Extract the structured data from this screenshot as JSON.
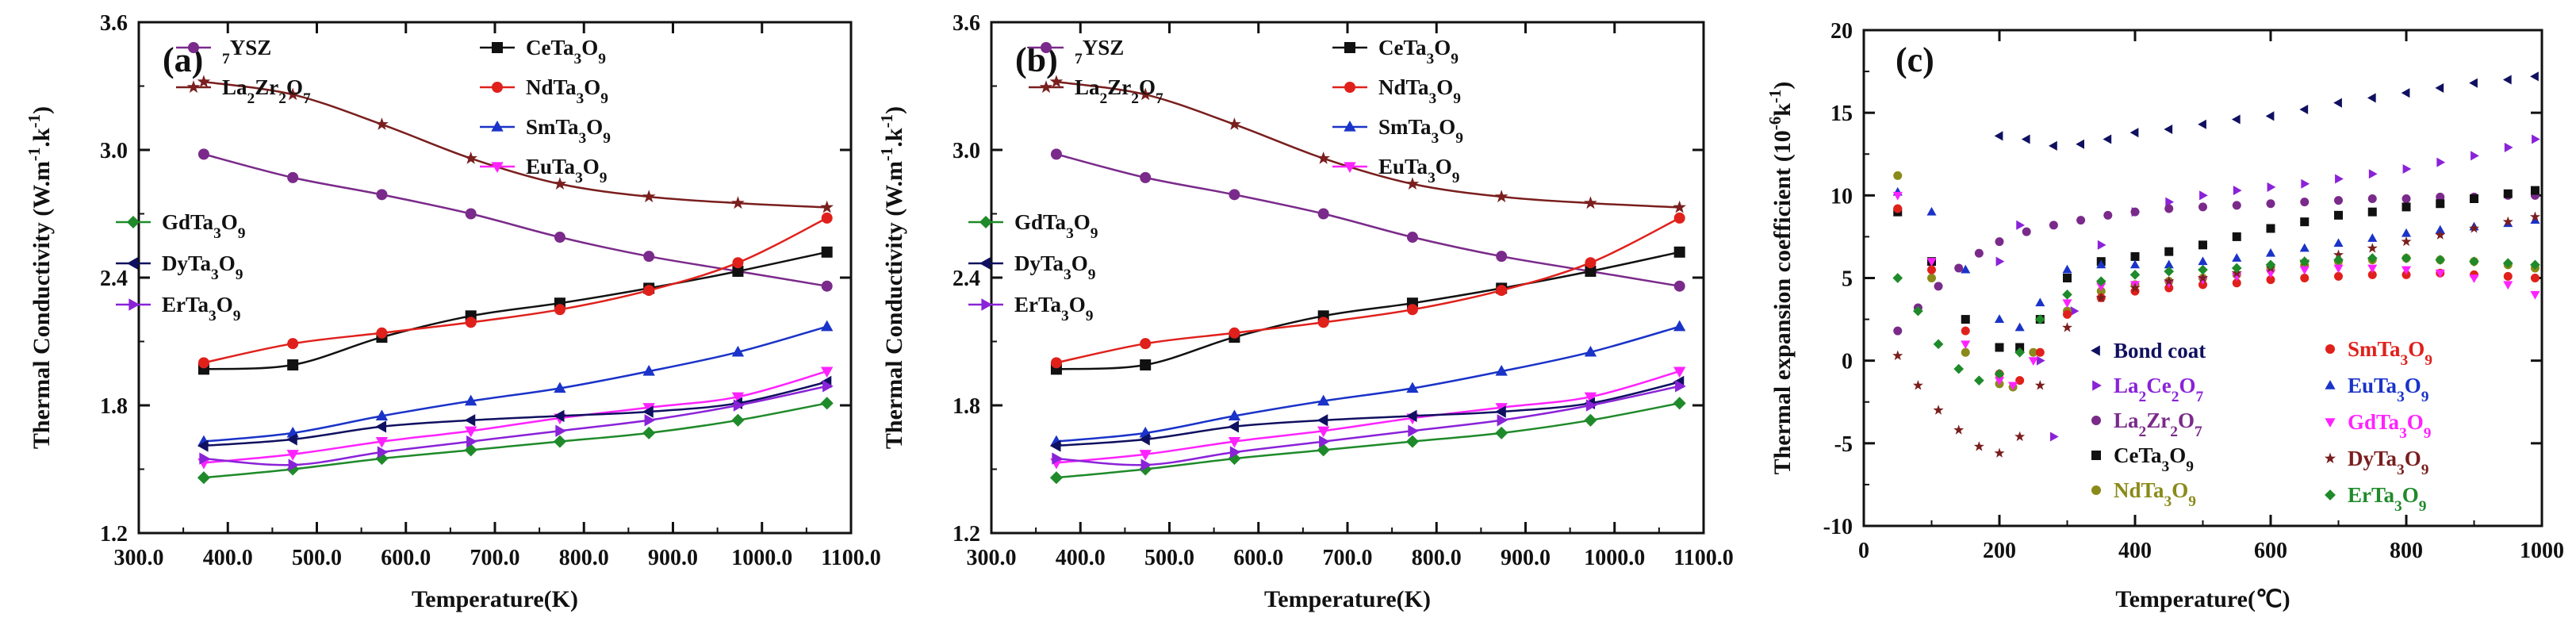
{
  "chart_data": [
    {
      "type": "line",
      "panel_label": "(a)",
      "xlabel": "Temperature(K)",
      "ylabel": "Thermal Conductivity (W.m-1.k-1)",
      "xlim": [
        300,
        1100
      ],
      "ylim": [
        1.2,
        3.6
      ],
      "xticks": [
        300,
        400,
        500,
        600,
        700,
        800,
        900,
        1000,
        1100
      ],
      "yticks": [
        1.2,
        1.8,
        2.4,
        3.0,
        3.6
      ],
      "grid": false,
      "x": [
        373,
        473,
        573,
        673,
        773,
        873,
        973,
        1073
      ],
      "series": [
        {
          "name": "7YSZ",
          "marker": "circle",
          "color": "#7a2a8a",
          "values": [
            2.98,
            2.87,
            2.79,
            2.7,
            2.59,
            2.5,
            2.43,
            2.36
          ]
        },
        {
          "name": "La2Zr2O7",
          "marker": "star",
          "color": "#7a1e1e",
          "values": [
            3.32,
            3.26,
            3.12,
            2.96,
            2.84,
            2.78,
            2.75,
            2.73
          ]
        },
        {
          "name": "CeTa3O9",
          "marker": "square",
          "color": "#111111",
          "values": [
            1.97,
            1.99,
            2.12,
            2.22,
            2.28,
            2.35,
            2.43,
            2.52
          ]
        },
        {
          "name": "NdTa3O9",
          "marker": "circle",
          "color": "#e0201b",
          "values": [
            2.0,
            2.09,
            2.14,
            2.19,
            2.25,
            2.34,
            2.47,
            2.68
          ]
        },
        {
          "name": "SmTa3O9",
          "marker": "triangle-up",
          "color": "#1a33c8",
          "values": [
            1.63,
            1.67,
            1.75,
            1.82,
            1.88,
            1.96,
            2.05,
            2.17
          ]
        },
        {
          "name": "EuTa3O9",
          "marker": "triangle-down",
          "color": "#ff22ff",
          "values": [
            1.53,
            1.57,
            1.63,
            1.68,
            1.74,
            1.79,
            1.84,
            1.96
          ]
        },
        {
          "name": "GdTa3O9",
          "marker": "diamond",
          "color": "#1f8a2a",
          "values": [
            1.46,
            1.5,
            1.55,
            1.59,
            1.63,
            1.67,
            1.73,
            1.81
          ]
        },
        {
          "name": "DyTa3O9",
          "marker": "triangle-left",
          "color": "#101060",
          "values": [
            1.61,
            1.64,
            1.7,
            1.73,
            1.75,
            1.77,
            1.81,
            1.91
          ]
        },
        {
          "name": "ErTa3O9",
          "marker": "triangle-right",
          "color": "#8a22d8",
          "values": [
            1.55,
            1.52,
            1.58,
            1.63,
            1.68,
            1.73,
            1.8,
            1.89
          ]
        }
      ]
    },
    {
      "type": "line",
      "panel_label": "(b)",
      "xlabel": "Temperature(K)",
      "ylabel": "Thermal Conductivity (W.m-1.k-1)",
      "xlim": [
        300,
        1100
      ],
      "ylim": [
        1.2,
        3.6
      ],
      "xticks": [
        300,
        400,
        500,
        600,
        700,
        800,
        900,
        1000,
        1100
      ],
      "yticks": [
        1.2,
        1.8,
        2.4,
        3.0,
        3.6
      ],
      "grid": false,
      "x": [
        373,
        473,
        573,
        673,
        773,
        873,
        973,
        1073
      ],
      "series": [
        {
          "name": "7YSZ",
          "marker": "circle",
          "color": "#7a2a8a",
          "values": [
            2.98,
            2.87,
            2.79,
            2.7,
            2.59,
            2.5,
            2.43,
            2.36
          ]
        },
        {
          "name": "La2Zr2O7",
          "marker": "star",
          "color": "#7a1e1e",
          "values": [
            3.32,
            3.26,
            3.12,
            2.96,
            2.84,
            2.78,
            2.75,
            2.73
          ]
        },
        {
          "name": "CeTa3O9",
          "marker": "square",
          "color": "#111111",
          "values": [
            1.97,
            1.99,
            2.12,
            2.22,
            2.28,
            2.35,
            2.43,
            2.52
          ]
        },
        {
          "name": "NdTa3O9",
          "marker": "circle",
          "color": "#e0201b",
          "values": [
            2.0,
            2.09,
            2.14,
            2.19,
            2.25,
            2.34,
            2.47,
            2.68
          ]
        },
        {
          "name": "SmTa3O9",
          "marker": "triangle-up",
          "color": "#1a33c8",
          "values": [
            1.63,
            1.67,
            1.75,
            1.82,
            1.88,
            1.96,
            2.05,
            2.17
          ]
        },
        {
          "name": "EuTa3O9",
          "marker": "triangle-down",
          "color": "#ff22ff",
          "values": [
            1.53,
            1.57,
            1.63,
            1.68,
            1.74,
            1.79,
            1.84,
            1.96
          ]
        },
        {
          "name": "GdTa3O9",
          "marker": "diamond",
          "color": "#1f8a2a",
          "values": [
            1.46,
            1.5,
            1.55,
            1.59,
            1.63,
            1.67,
            1.73,
            1.81
          ]
        },
        {
          "name": "DyTa3O9",
          "marker": "triangle-left",
          "color": "#101060",
          "values": [
            1.61,
            1.64,
            1.7,
            1.73,
            1.75,
            1.77,
            1.81,
            1.91
          ]
        },
        {
          "name": "ErTa3O9",
          "marker": "triangle-right",
          "color": "#8a22d8",
          "values": [
            1.55,
            1.52,
            1.58,
            1.63,
            1.68,
            1.73,
            1.8,
            1.89
          ]
        }
      ]
    },
    {
      "type": "scatter",
      "panel_label": "(c)",
      "xlabel": "Temperature(℃)",
      "ylabel": "Thermal expansion coefficient (10-6k-1)",
      "xlim": [
        0,
        1000
      ],
      "ylim": [
        -10,
        20
      ],
      "xticks": [
        0,
        200,
        400,
        600,
        800,
        1000
      ],
      "yticks": [
        -10,
        -5,
        0,
        5,
        10,
        15,
        20
      ],
      "grid": false,
      "series": [
        {
          "name": "Bond coat",
          "marker": "triangle-left",
          "color": "#101060",
          "x": [
            200,
            240,
            280,
            320,
            360,
            400,
            450,
            500,
            550,
            600,
            650,
            700,
            750,
            800,
            850,
            900,
            950,
            990
          ],
          "y": [
            13.6,
            13.4,
            13.0,
            13.1,
            13.4,
            13.8,
            14.0,
            14.3,
            14.6,
            14.8,
            15.2,
            15.6,
            15.9,
            16.2,
            16.5,
            16.8,
            17.0,
            17.2
          ]
        },
        {
          "name": "La2Ce2O7",
          "marker": "triangle-right",
          "color": "#8a22d8",
          "x": [
            200,
            230,
            260,
            280,
            310,
            350,
            400,
            450,
            500,
            550,
            600,
            650,
            700,
            750,
            800,
            850,
            900,
            950,
            990
          ],
          "y": [
            6.0,
            8.2,
            0.0,
            -4.6,
            3.0,
            7.0,
            9.0,
            9.6,
            10.0,
            10.3,
            10.5,
            10.7,
            11.0,
            11.3,
            11.6,
            12.0,
            12.4,
            12.9,
            13.4
          ]
        },
        {
          "name": "La2Zr2O7",
          "marker": "circle",
          "color": "#7a2a8a",
          "x": [
            50,
            80,
            110,
            140,
            170,
            200,
            240,
            280,
            320,
            360,
            400,
            450,
            500,
            550,
            600,
            650,
            700,
            750,
            800,
            850,
            900,
            950,
            990
          ],
          "y": [
            1.8,
            3.2,
            4.5,
            5.6,
            6.5,
            7.2,
            7.8,
            8.2,
            8.5,
            8.8,
            9.0,
            9.2,
            9.3,
            9.4,
            9.5,
            9.6,
            9.7,
            9.8,
            9.8,
            9.9,
            9.9,
            10.0,
            10.0
          ]
        },
        {
          "name": "CeTa3O9",
          "marker": "square",
          "color": "#111111",
          "x": [
            50,
            100,
            150,
            200,
            230,
            260,
            300,
            350,
            400,
            450,
            500,
            550,
            600,
            650,
            700,
            750,
            800,
            850,
            900,
            950,
            990
          ],
          "y": [
            9.0,
            6.0,
            2.5,
            0.8,
            0.8,
            2.5,
            5.0,
            6.0,
            6.3,
            6.6,
            7.0,
            7.5,
            8.0,
            8.4,
            8.8,
            9.0,
            9.3,
            9.5,
            9.8,
            10.1,
            10.3
          ]
        },
        {
          "name": "NdTa3O9",
          "marker": "circle",
          "color": "#8a8a1a",
          "x": [
            50,
            100,
            150,
            200,
            220,
            250,
            300,
            350,
            400,
            450,
            500,
            550,
            600,
            650,
            700,
            750,
            800,
            850,
            900,
            950,
            990
          ],
          "y": [
            11.2,
            5.0,
            0.5,
            -1.4,
            -1.6,
            0.5,
            3.0,
            4.2,
            4.6,
            4.8,
            5.0,
            5.2,
            5.5,
            5.8,
            6.0,
            6.1,
            6.2,
            6.1,
            6.0,
            5.8,
            5.6
          ]
        },
        {
          "name": "SmTa3O9",
          "marker": "circle",
          "color": "#e0201b",
          "x": [
            50,
            100,
            150,
            200,
            230,
            260,
            300,
            350,
            400,
            450,
            500,
            550,
            600,
            650,
            700,
            750,
            800,
            850,
            900,
            950,
            990
          ],
          "y": [
            9.2,
            5.5,
            1.8,
            -0.8,
            -1.2,
            0.5,
            2.8,
            3.8,
            4.2,
            4.4,
            4.6,
            4.7,
            4.9,
            5.0,
            5.1,
            5.2,
            5.2,
            5.3,
            5.2,
            5.1,
            5.0
          ]
        },
        {
          "name": "EuTa3O9",
          "marker": "triangle-up",
          "color": "#1a33c8",
          "x": [
            50,
            100,
            150,
            200,
            230,
            260,
            300,
            350,
            400,
            450,
            500,
            550,
            600,
            650,
            700,
            750,
            800,
            850,
            900,
            950,
            990
          ],
          "y": [
            10.2,
            9.0,
            5.5,
            2.5,
            2.0,
            3.5,
            5.5,
            5.8,
            5.8,
            5.8,
            6.0,
            6.2,
            6.5,
            6.8,
            7.1,
            7.4,
            7.7,
            7.9,
            8.1,
            8.3,
            8.5
          ]
        },
        {
          "name": "GdTa3O9",
          "marker": "triangle-down",
          "color": "#ff22ff",
          "x": [
            50,
            100,
            150,
            200,
            220,
            250,
            300,
            350,
            400,
            450,
            500,
            550,
            600,
            650,
            700,
            750,
            800,
            850,
            900,
            950,
            990
          ],
          "y": [
            10.0,
            6.0,
            1.0,
            -1.2,
            -1.5,
            0.0,
            3.5,
            4.5,
            4.6,
            4.7,
            4.9,
            5.1,
            5.3,
            5.5,
            5.6,
            5.6,
            5.5,
            5.3,
            5.0,
            4.6,
            4.0
          ]
        },
        {
          "name": "DyTa3O9",
          "marker": "star",
          "color": "#7a1e1e",
          "x": [
            50,
            80,
            110,
            140,
            170,
            200,
            230,
            260,
            300,
            350,
            400,
            450,
            500,
            550,
            600,
            650,
            700,
            750,
            800,
            850,
            900,
            950,
            990
          ],
          "y": [
            0.3,
            -1.5,
            -3.0,
            -4.2,
            -5.2,
            -5.6,
            -4.6,
            -1.5,
            2.0,
            3.8,
            4.4,
            4.8,
            5.0,
            5.3,
            5.6,
            6.0,
            6.4,
            6.8,
            7.2,
            7.6,
            8.0,
            8.4,
            8.7
          ]
        },
        {
          "name": "ErTa3O9",
          "marker": "diamond",
          "color": "#1f8a2a",
          "x": [
            50,
            80,
            110,
            140,
            170,
            200,
            230,
            260,
            300,
            350,
            400,
            450,
            500,
            550,
            600,
            650,
            700,
            750,
            800,
            850,
            900,
            950,
            990
          ],
          "y": [
            5.0,
            3.0,
            1.0,
            -0.5,
            -1.2,
            -0.8,
            0.5,
            2.5,
            4.0,
            4.8,
            5.2,
            5.4,
            5.5,
            5.6,
            5.8,
            6.0,
            6.1,
            6.2,
            6.2,
            6.1,
            6.0,
            5.9,
            5.8
          ]
        }
      ]
    }
  ]
}
